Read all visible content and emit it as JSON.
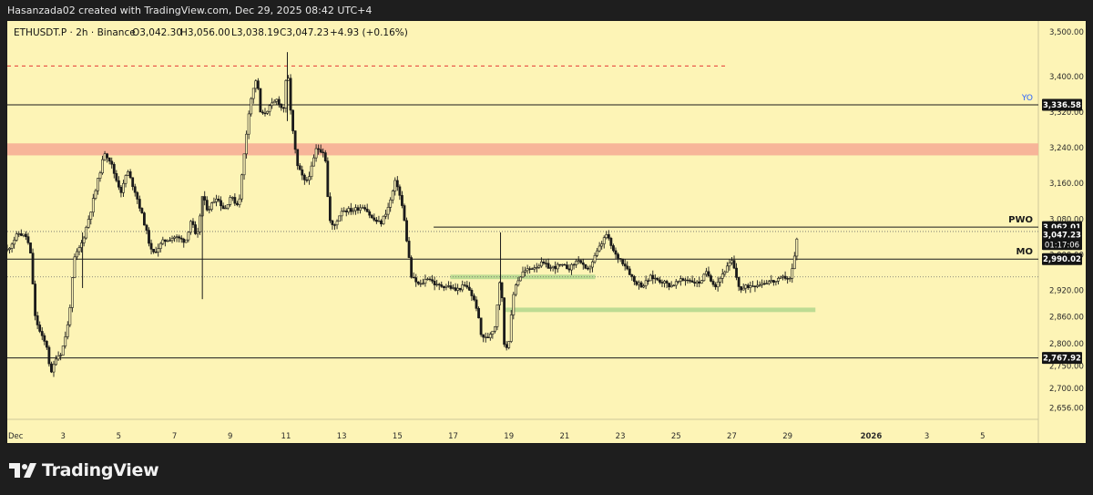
{
  "header": {
    "attribution": "Hasanzada02 created with TradingView.com, Dec 29, 2025 08:42 UTC+4"
  },
  "footer": {
    "logo_text": "TradingView"
  },
  "colors": {
    "background": "#fdf4b6",
    "candle": "#1a1a1a",
    "resistance_zone": "#f7b198",
    "support_zone": "#b6d88f",
    "high_dash": "#e53935",
    "yo_label": "#2962ff"
  },
  "chart_data": {
    "type": "candlestick",
    "symbol_info": "ETHUSDT.P · 2h · Binance",
    "ohlc": {
      "O": "O3,042.30",
      "H": "H3,056.00",
      "L": "L3,038.19",
      "C": "C3,047.23",
      "change": "+4.93 (+0.16%)"
    },
    "ylim": [
      2630,
      3525
    ],
    "yticks": [
      {
        "value": 3500,
        "label": "3,500.00"
      },
      {
        "value": 3400,
        "label": "3,400.00"
      },
      {
        "value": 3320,
        "label": "3,320.00"
      },
      {
        "value": 3240,
        "label": "3,240.00"
      },
      {
        "value": 3160,
        "label": "3,160.00"
      },
      {
        "value": 3080,
        "label": "3,080.00"
      },
      {
        "value": 3000,
        "label": "3,000.00"
      },
      {
        "value": 2920,
        "label": "2,920.00"
      },
      {
        "value": 2860,
        "label": "2,860.00"
      },
      {
        "value": 2800,
        "label": "2,800.00"
      },
      {
        "value": 2750,
        "label": "2,750.00"
      },
      {
        "value": 2700,
        "label": "2,700.00"
      },
      {
        "value": 2656,
        "label": "2,656.00"
      }
    ],
    "x_range": [
      0,
      37
    ],
    "xticks": [
      {
        "x": 0.3,
        "label": "Dec"
      },
      {
        "x": 2,
        "label": "3"
      },
      {
        "x": 4,
        "label": "5"
      },
      {
        "x": 6,
        "label": "7"
      },
      {
        "x": 8,
        "label": "9"
      },
      {
        "x": 10,
        "label": "11"
      },
      {
        "x": 12,
        "label": "13"
      },
      {
        "x": 14,
        "label": "15"
      },
      {
        "x": 16,
        "label": "17"
      },
      {
        "x": 18,
        "label": "19"
      },
      {
        "x": 20,
        "label": "21"
      },
      {
        "x": 22,
        "label": "23"
      },
      {
        "x": 24,
        "label": "25"
      },
      {
        "x": 26,
        "label": "27"
      },
      {
        "x": 28,
        "label": "29"
      },
      {
        "x": 31,
        "label": "2026"
      },
      {
        "x": 33,
        "label": "3"
      },
      {
        "x": 35,
        "label": "5"
      }
    ],
    "price_path": [
      [
        0,
        3010
      ],
      [
        0.15,
        3025
      ],
      [
        0.4,
        3048
      ],
      [
        0.7,
        3040
      ],
      [
        0.85,
        2995
      ],
      [
        1.0,
        2860
      ],
      [
        1.2,
        2820
      ],
      [
        1.45,
        2790
      ],
      [
        1.55,
        2725
      ],
      [
        1.75,
        2770
      ],
      [
        1.95,
        2780
      ],
      [
        2.2,
        2850
      ],
      [
        2.4,
        2990
      ],
      [
        2.7,
        3030
      ],
      [
        3.0,
        3100
      ],
      [
        3.3,
        3180
      ],
      [
        3.5,
        3230
      ],
      [
        3.7,
        3210
      ],
      [
        3.9,
        3170
      ],
      [
        4.1,
        3140
      ],
      [
        4.3,
        3190
      ],
      [
        4.6,
        3140
      ],
      [
        4.9,
        3075
      ],
      [
        5.2,
        3000
      ],
      [
        5.6,
        3030
      ],
      [
        6.0,
        3040
      ],
      [
        6.4,
        3030
      ],
      [
        6.6,
        3080
      ],
      [
        6.8,
        3030
      ],
      [
        7.0,
        3130
      ],
      [
        7.2,
        3100
      ],
      [
        7.5,
        3130
      ],
      [
        7.8,
        3100
      ],
      [
        8.0,
        3130
      ],
      [
        8.3,
        3110
      ],
      [
        8.7,
        3340
      ],
      [
        8.95,
        3400
      ],
      [
        9.1,
        3310
      ],
      [
        9.4,
        3330
      ],
      [
        9.7,
        3350
      ],
      [
        9.9,
        3320
      ],
      [
        10.05,
        3420
      ],
      [
        10.2,
        3300
      ],
      [
        10.4,
        3200
      ],
      [
        10.7,
        3160
      ],
      [
        10.9,
        3190
      ],
      [
        11.1,
        3240
      ],
      [
        11.4,
        3230
      ],
      [
        11.55,
        3080
      ],
      [
        11.7,
        3060
      ],
      [
        12.0,
        3100
      ],
      [
        12.4,
        3100
      ],
      [
        12.8,
        3110
      ],
      [
        13.1,
        3080
      ],
      [
        13.4,
        3070
      ],
      [
        13.7,
        3110
      ],
      [
        13.95,
        3170
      ],
      [
        14.2,
        3100
      ],
      [
        14.5,
        2950
      ],
      [
        14.8,
        2930
      ],
      [
        15.1,
        2950
      ],
      [
        15.4,
        2930
      ],
      [
        15.8,
        2930
      ],
      [
        16.1,
        2920
      ],
      [
        16.4,
        2930
      ],
      [
        16.6,
        2920
      ],
      [
        16.85,
        2880
      ],
      [
        17.0,
        2820
      ],
      [
        17.2,
        2810
      ],
      [
        17.5,
        2840
      ],
      [
        17.7,
        2960
      ],
      [
        17.85,
        2780
      ],
      [
        18.0,
        2810
      ],
      [
        18.2,
        2930
      ],
      [
        18.5,
        2960
      ],
      [
        18.8,
        2970
      ],
      [
        19.2,
        2980
      ],
      [
        19.5,
        2970
      ],
      [
        19.8,
        2975
      ],
      [
        20.2,
        2970
      ],
      [
        20.5,
        2990
      ],
      [
        20.8,
        2960
      ],
      [
        21.2,
        3010
      ],
      [
        21.5,
        3045
      ],
      [
        21.8,
        3000
      ],
      [
        22.0,
        2990
      ],
      [
        22.2,
        2975
      ],
      [
        22.5,
        2940
      ],
      [
        22.8,
        2930
      ],
      [
        23.1,
        2950
      ],
      [
        23.5,
        2940
      ],
      [
        23.8,
        2930
      ],
      [
        24.1,
        2940
      ],
      [
        24.4,
        2945
      ],
      [
        24.8,
        2935
      ],
      [
        25.1,
        2960
      ],
      [
        25.4,
        2930
      ],
      [
        25.7,
        2960
      ],
      [
        26.0,
        2985
      ],
      [
        26.3,
        2920
      ],
      [
        26.6,
        2930
      ],
      [
        27.0,
        2935
      ],
      [
        27.3,
        2940
      ],
      [
        27.6,
        2940
      ],
      [
        27.9,
        2950
      ],
      [
        28.1,
        2945
      ],
      [
        28.25,
        2995
      ],
      [
        28.35,
        3047
      ]
    ],
    "levels": [
      {
        "name": "YO",
        "value": 3336.58,
        "label": "3,336.58",
        "x_start": 0
      },
      {
        "name": "PWO",
        "value": 3062.01,
        "label": "3,062.01",
        "x_start": 15.3
      },
      {
        "name": "MO",
        "value": 2990.02,
        "label": "2,990.02",
        "x_start": 0
      },
      {
        "name": "",
        "value": 2767.92,
        "label": "2,767.92",
        "x_start": 0
      }
    ],
    "last_price": {
      "value": 3047.23,
      "label": "3,047.23",
      "countdown": "01:17:06"
    },
    "dotted_lines": [
      3052,
      2950
    ],
    "high_dashed": {
      "value": 3424,
      "x_start": 0,
      "x_end": 25.8
    },
    "zones": [
      {
        "kind": "resistance",
        "y_top": 3250,
        "y_bottom": 3223,
        "x_start": 0,
        "x_end": 37
      },
      {
        "kind": "support",
        "y_top": 2955,
        "y_bottom": 2945,
        "x_start": 15.9,
        "x_end": 21.1
      },
      {
        "kind": "support",
        "y_top": 2881,
        "y_bottom": 2871,
        "x_start": 17.8,
        "x_end": 29.0
      }
    ]
  }
}
